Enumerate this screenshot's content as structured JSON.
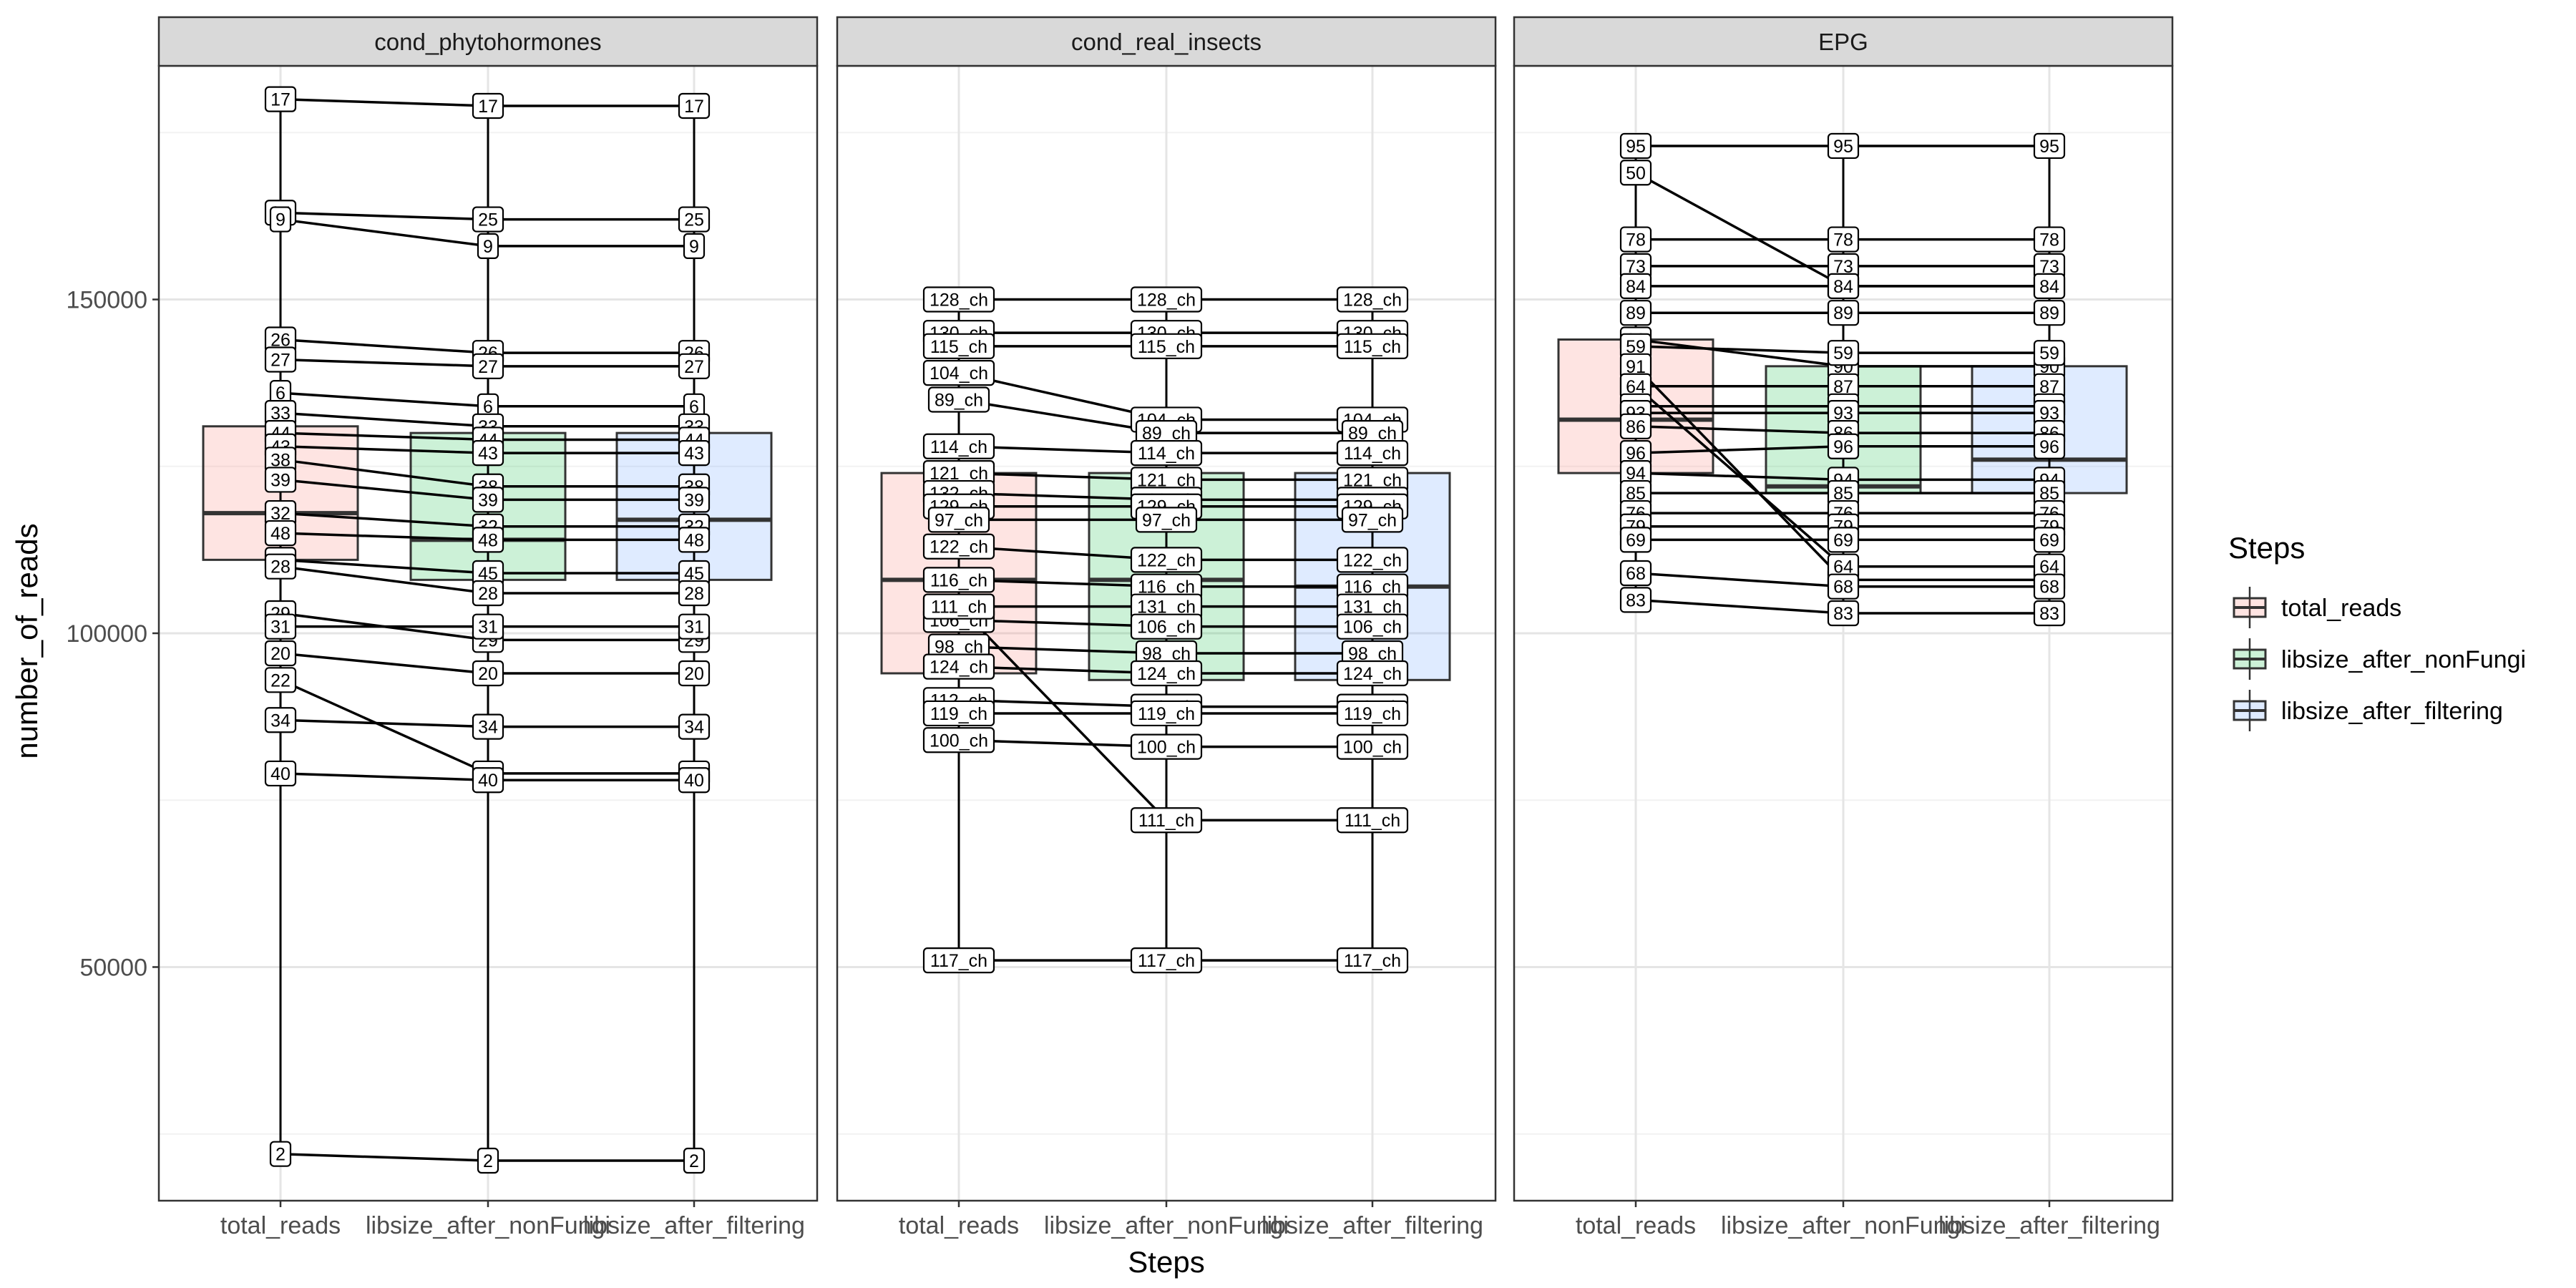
{
  "chart_data": {
    "type": "box",
    "xlabel": "Steps",
    "ylabel": "number_of_reads",
    "ylim": [
      15000,
      185000
    ],
    "yticks": [
      50000,
      100000,
      150000
    ],
    "categories": [
      "total_reads",
      "libsize_after_nonFungi",
      "libsize_after_filtering"
    ],
    "legend": {
      "title": "Steps",
      "position": "right",
      "items": [
        {
          "label": "total_reads",
          "color": "#F8766D"
        },
        {
          "label": "libsize_after_nonFungi",
          "color": "#00BA38"
        },
        {
          "label": "libsize_after_filtering",
          "color": "#619CFF"
        }
      ]
    },
    "facets": [
      {
        "name": "cond_phytohormones",
        "boxes": [
          {
            "q1": 111000,
            "median": 118000,
            "q3": 131000
          },
          {
            "q1": 108000,
            "median": 114000,
            "q3": 130000
          },
          {
            "q1": 108000,
            "median": 117000,
            "q3": 130000
          }
        ],
        "samples": [
          {
            "label": "17",
            "values": [
              180000,
              179000,
              179000
            ]
          },
          {
            "label": "25",
            "values": [
              163000,
              162000,
              162000
            ]
          },
          {
            "label": "9",
            "values": [
              162000,
              158000,
              158000
            ]
          },
          {
            "label": "26",
            "values": [
              144000,
              142000,
              142000
            ]
          },
          {
            "label": "27",
            "values": [
              141000,
              140000,
              140000
            ]
          },
          {
            "label": "6",
            "values": [
              136000,
              134000,
              134000
            ]
          },
          {
            "label": "33",
            "values": [
              133000,
              131000,
              131000
            ]
          },
          {
            "label": "44",
            "values": [
              130000,
              129000,
              129000
            ]
          },
          {
            "label": "43",
            "values": [
              128000,
              127000,
              127000
            ]
          },
          {
            "label": "38",
            "values": [
              126000,
              122000,
              122000
            ]
          },
          {
            "label": "39",
            "values": [
              123000,
              120000,
              120000
            ]
          },
          {
            "label": "32",
            "values": [
              118000,
              116000,
              116000
            ]
          },
          {
            "label": "48",
            "values": [
              115000,
              114000,
              114000
            ]
          },
          {
            "label": "45",
            "values": [
              111000,
              109000,
              109000
            ]
          },
          {
            "label": "28",
            "values": [
              110000,
              106000,
              106000
            ]
          },
          {
            "label": "29",
            "values": [
              103000,
              99000,
              99000
            ]
          },
          {
            "label": "31",
            "values": [
              101000,
              101000,
              101000
            ]
          },
          {
            "label": "20",
            "values": [
              97000,
              94000,
              94000
            ]
          },
          {
            "label": "22",
            "values": [
              93000,
              79000,
              79000
            ]
          },
          {
            "label": "34",
            "values": [
              87000,
              86000,
              86000
            ]
          },
          {
            "label": "40",
            "values": [
              79000,
              78000,
              78000
            ]
          },
          {
            "label": "2",
            "values": [
              22000,
              21000,
              21000
            ]
          }
        ]
      },
      {
        "name": "cond_real_insects",
        "boxes": [
          {
            "q1": 94000,
            "median": 108000,
            "q3": 124000
          },
          {
            "q1": 93000,
            "median": 108000,
            "q3": 124000
          },
          {
            "q1": 93000,
            "median": 107000,
            "q3": 124000
          }
        ],
        "samples": [
          {
            "label": "128_ch",
            "values": [
              150000,
              150000,
              150000
            ]
          },
          {
            "label": "130_ch",
            "values": [
              145000,
              145000,
              145000
            ]
          },
          {
            "label": "115_ch",
            "values": [
              143000,
              143000,
              143000
            ]
          },
          {
            "label": "104_ch",
            "values": [
              139000,
              132000,
              132000
            ]
          },
          {
            "label": "89_ch",
            "values": [
              135000,
              130000,
              130000
            ]
          },
          {
            "label": "114_ch",
            "values": [
              128000,
              127000,
              127000
            ]
          },
          {
            "label": "121_ch",
            "values": [
              124000,
              123000,
              123000
            ]
          },
          {
            "label": "132_ch",
            "values": [
              121000,
              120000,
              120000
            ]
          },
          {
            "label": "129_ch",
            "values": [
              119000,
              119000,
              119000
            ]
          },
          {
            "label": "97_ch",
            "values": [
              117000,
              117000,
              117000
            ]
          },
          {
            "label": "122_ch",
            "values": [
              113000,
              111000,
              111000
            ]
          },
          {
            "label": "116_ch",
            "values": [
              108000,
              107000,
              107000
            ]
          },
          {
            "label": "131_ch",
            "values": [
              104000,
              104000,
              104000
            ]
          },
          {
            "label": "106_ch",
            "values": [
              102000,
              101000,
              101000
            ]
          },
          {
            "label": "98_ch",
            "values": [
              98000,
              97000,
              97000
            ]
          },
          {
            "label": "124_ch",
            "values": [
              95000,
              94000,
              94000
            ]
          },
          {
            "label": "112_ch",
            "values": [
              90000,
              89000,
              89000
            ]
          },
          {
            "label": "119_ch",
            "values": [
              88000,
              88000,
              88000
            ]
          },
          {
            "label": "100_ch",
            "values": [
              84000,
              83000,
              83000
            ]
          },
          {
            "label": "111_ch",
            "values": [
              104000,
              72000,
              72000
            ]
          },
          {
            "label": "117_ch",
            "values": [
              51000,
              51000,
              51000
            ]
          }
        ]
      },
      {
        "name": "EPG",
        "boxes": [
          {
            "q1": 124000,
            "median": 132000,
            "q3": 144000
          },
          {
            "q1": 121000,
            "median": 122000,
            "q3": 140000
          },
          {
            "q1": 121000,
            "median": 126000,
            "q3": 140000
          }
        ],
        "samples": [
          {
            "label": "95",
            "values": [
              173000,
              173000,
              173000
            ]
          },
          {
            "label": "50",
            "values": [
              169000,
              152000,
              152000
            ]
          },
          {
            "label": "78",
            "values": [
              159000,
              159000,
              159000
            ]
          },
          {
            "label": "73",
            "values": [
              155000,
              155000,
              155000
            ]
          },
          {
            "label": "84",
            "values": [
              152000,
              152000,
              152000
            ]
          },
          {
            "label": "89",
            "values": [
              148000,
              148000,
              148000
            ]
          },
          {
            "label": "90",
            "values": [
              144000,
              140000,
              140000
            ]
          },
          {
            "label": "59",
            "values": [
              143000,
              142000,
              142000
            ]
          },
          {
            "label": "91",
            "values": [
              140000,
              108000,
              108000
            ]
          },
          {
            "label": "87",
            "values": [
              137000,
              137000,
              137000
            ]
          },
          {
            "label": "64",
            "values": [
              137000,
              110000,
              110000
            ]
          },
          {
            "label": "81",
            "values": [
              134000,
              134000,
              134000
            ]
          },
          {
            "label": "93",
            "values": [
              133000,
              133000,
              133000
            ]
          },
          {
            "label": "86",
            "values": [
              131000,
              130000,
              130000
            ]
          },
          {
            "label": "96",
            "values": [
              127000,
              128000,
              128000
            ]
          },
          {
            "label": "94",
            "values": [
              124000,
              123000,
              123000
            ]
          },
          {
            "label": "85",
            "values": [
              121000,
              121000,
              121000
            ]
          },
          {
            "label": "76",
            "values": [
              118000,
              118000,
              118000
            ]
          },
          {
            "label": "79",
            "values": [
              116000,
              116000,
              116000
            ]
          },
          {
            "label": "69",
            "values": [
              114000,
              114000,
              114000
            ]
          },
          {
            "label": "68",
            "values": [
              109000,
              107000,
              107000
            ]
          },
          {
            "label": "83",
            "values": [
              105000,
              103000,
              103000
            ]
          }
        ]
      }
    ]
  }
}
